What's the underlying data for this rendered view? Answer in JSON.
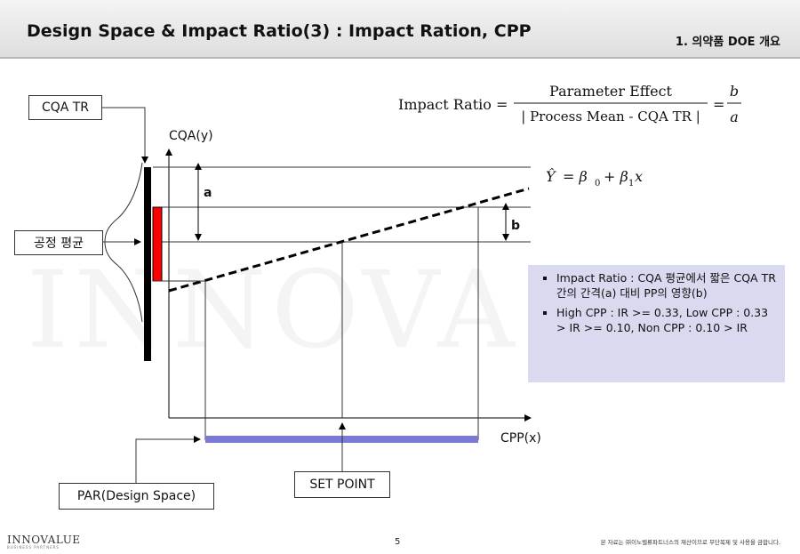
{
  "header": {
    "title": "Design Space & Impact Ratio(3) : Impact Ration, CPP",
    "section": "1. 의약품 DOE 개요"
  },
  "diagram": {
    "watermark": "INNOVA",
    "formula": {
      "lhs": "Impact Ratio =",
      "numerator": "Parameter Effect",
      "denominator": "| Process Mean - CQA TR |",
      "eq": "=",
      "frac_num": "b",
      "frac_den": "a"
    },
    "regression": {
      "y": "Ŷ",
      "eq": "= β",
      "sub0": "0",
      "plus": "+ β",
      "sub1": "1",
      "x": "x"
    },
    "y_axis_label": "CQA(y)",
    "x_axis_label": "CPP(x)",
    "label_a": "a",
    "label_b": "b",
    "cqa_tr_box": "CQA TR",
    "process_mean_box": "공정 평균",
    "par_box": "PAR(Design Space)",
    "set_point_box": "SET POINT",
    "colors": {
      "red_bar": "#ff0000",
      "par_bar": "#7b7bd6",
      "note_bg": "#d9d9f0"
    }
  },
  "notes": [
    "Impact Ratio : CQA 평균에서 짧은 CQA TR 간의 간격(a) 대비 PP의 영향(b)",
    "High CPP : IR >= 0.33, Low CPP : 0.33 > IR >= 0.10, Non CPP : 0.10 > IR"
  ],
  "footer": {
    "logo": "INNOVALUE",
    "logo_sub": "BUSINESS PARTNERS",
    "page": "5",
    "copyright": "본 자료는 ㈜이노밸류파트너스의 재산이므로 무단복제 및 사용을 금합니다."
  }
}
